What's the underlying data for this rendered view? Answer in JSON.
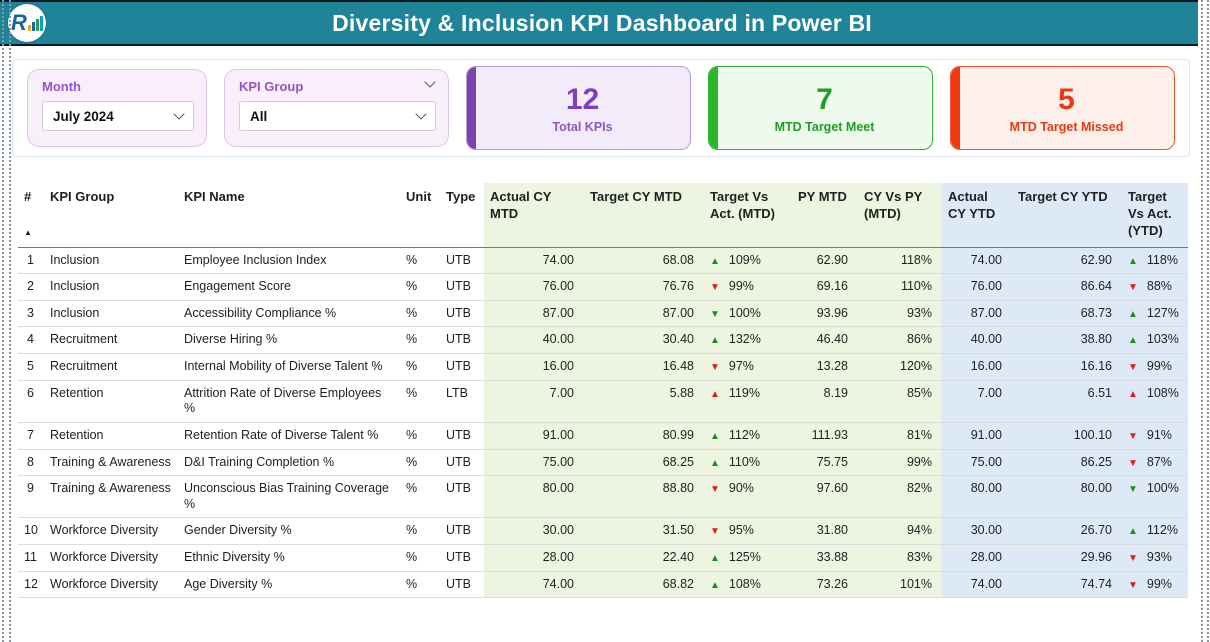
{
  "header": {
    "title": "Diversity & Inclusion KPI Dashboard in Power BI",
    "logo_letter": "R"
  },
  "filters": {
    "month": {
      "label": "Month",
      "value": "July 2024"
    },
    "kpi_group": {
      "label": "KPI Group",
      "value": "All"
    }
  },
  "cards": [
    {
      "value": "12",
      "label": "Total KPIs",
      "accent": "#7c44ac"
    },
    {
      "value": "7",
      "label": "MTD Target Meet",
      "accent": "#2db52d"
    },
    {
      "value": "5",
      "label": "MTD Target Missed",
      "accent": "#f0390e"
    }
  ],
  "table": {
    "sort_indicator": "▲",
    "columns": [
      {
        "label": "#"
      },
      {
        "label": "KPI Group"
      },
      {
        "label": "KPI Name"
      },
      {
        "label": "Unit"
      },
      {
        "label": "Type"
      },
      {
        "label": "Actual CY MTD",
        "group": "mtd"
      },
      {
        "label": "Target CY MTD",
        "group": "mtd"
      },
      {
        "label": "Target Vs Act. (MTD)",
        "group": "mtd"
      },
      {
        "label": "PY MTD",
        "group": "mtd"
      },
      {
        "label": "CY Vs PY (MTD)",
        "group": "mtd"
      },
      {
        "label": "Actual CY YTD",
        "group": "ytd"
      },
      {
        "label": "Target CY YTD",
        "group": "ytd"
      },
      {
        "label": "Target Vs Act. (YTD)",
        "group": "ytd"
      }
    ],
    "rows": [
      {
        "n": "1",
        "group": "Inclusion",
        "name": "Employee Inclusion Index",
        "unit": "%",
        "type": "UTB",
        "actual_mtd": "74.00",
        "target_mtd": "68.08",
        "tva_mtd": {
          "dir": "up",
          "tone": "good",
          "value": "109%"
        },
        "py_mtd": "62.90",
        "cy_py_mtd": "118%",
        "actual_ytd": "74.00",
        "target_ytd": "62.90",
        "tva_ytd": {
          "dir": "up",
          "tone": "good",
          "value": "118%"
        }
      },
      {
        "n": "2",
        "group": "Inclusion",
        "name": "Engagement Score",
        "unit": "%",
        "type": "UTB",
        "actual_mtd": "76.00",
        "target_mtd": "76.76",
        "tva_mtd": {
          "dir": "down",
          "tone": "bad",
          "value": "99%"
        },
        "py_mtd": "69.16",
        "cy_py_mtd": "110%",
        "actual_ytd": "76.00",
        "target_ytd": "86.64",
        "tva_ytd": {
          "dir": "down",
          "tone": "bad",
          "value": "88%"
        }
      },
      {
        "n": "3",
        "group": "Inclusion",
        "name": "Accessibility Compliance %",
        "unit": "%",
        "type": "UTB",
        "actual_mtd": "87.00",
        "target_mtd": "87.00",
        "tva_mtd": {
          "dir": "down",
          "tone": "good",
          "value": "100%"
        },
        "py_mtd": "93.96",
        "cy_py_mtd": "93%",
        "actual_ytd": "87.00",
        "target_ytd": "68.73",
        "tva_ytd": {
          "dir": "up",
          "tone": "good",
          "value": "127%"
        }
      },
      {
        "n": "4",
        "group": "Recruitment",
        "name": "Diverse Hiring %",
        "unit": "%",
        "type": "UTB",
        "actual_mtd": "40.00",
        "target_mtd": "30.40",
        "tva_mtd": {
          "dir": "up",
          "tone": "good",
          "value": "132%"
        },
        "py_mtd": "46.40",
        "cy_py_mtd": "86%",
        "actual_ytd": "40.00",
        "target_ytd": "38.80",
        "tva_ytd": {
          "dir": "up",
          "tone": "good",
          "value": "103%"
        }
      },
      {
        "n": "5",
        "group": "Recruitment",
        "name": "Internal Mobility of Diverse Talent %",
        "unit": "%",
        "type": "UTB",
        "actual_mtd": "16.00",
        "target_mtd": "16.48",
        "tva_mtd": {
          "dir": "down",
          "tone": "bad",
          "value": "97%"
        },
        "py_mtd": "13.28",
        "cy_py_mtd": "120%",
        "actual_ytd": "16.00",
        "target_ytd": "16.16",
        "tva_ytd": {
          "dir": "down",
          "tone": "bad",
          "value": "99%"
        }
      },
      {
        "n": "6",
        "group": "Retention",
        "name": "Attrition Rate of Diverse Employees %",
        "unit": "%",
        "type": "LTB",
        "actual_mtd": "7.00",
        "target_mtd": "5.88",
        "tva_mtd": {
          "dir": "up",
          "tone": "bad",
          "value": "119%"
        },
        "py_mtd": "8.19",
        "cy_py_mtd": "85%",
        "actual_ytd": "7.00",
        "target_ytd": "6.51",
        "tva_ytd": {
          "dir": "up",
          "tone": "bad",
          "value": "108%"
        }
      },
      {
        "n": "7",
        "group": "Retention",
        "name": "Retention Rate of Diverse Talent %",
        "unit": "%",
        "type": "UTB",
        "actual_mtd": "91.00",
        "target_mtd": "80.99",
        "tva_mtd": {
          "dir": "up",
          "tone": "good",
          "value": "112%"
        },
        "py_mtd": "111.93",
        "cy_py_mtd": "81%",
        "actual_ytd": "91.00",
        "target_ytd": "100.10",
        "tva_ytd": {
          "dir": "down",
          "tone": "bad",
          "value": "91%"
        }
      },
      {
        "n": "8",
        "group": "Training & Awareness",
        "name": "D&I Training Completion %",
        "unit": "%",
        "type": "UTB",
        "actual_mtd": "75.00",
        "target_mtd": "68.25",
        "tva_mtd": {
          "dir": "up",
          "tone": "good",
          "value": "110%"
        },
        "py_mtd": "75.75",
        "cy_py_mtd": "99%",
        "actual_ytd": "75.00",
        "target_ytd": "86.25",
        "tva_ytd": {
          "dir": "down",
          "tone": "bad",
          "value": "87%"
        }
      },
      {
        "n": "9",
        "group": "Training & Awareness",
        "name": "Unconscious Bias Training Coverage %",
        "unit": "%",
        "type": "UTB",
        "actual_mtd": "80.00",
        "target_mtd": "88.80",
        "tva_mtd": {
          "dir": "down",
          "tone": "bad",
          "value": "90%"
        },
        "py_mtd": "97.60",
        "cy_py_mtd": "82%",
        "actual_ytd": "80.00",
        "target_ytd": "80.00",
        "tva_ytd": {
          "dir": "down",
          "tone": "good",
          "value": "100%"
        }
      },
      {
        "n": "10",
        "group": "Workforce Diversity",
        "name": "Gender Diversity %",
        "unit": "%",
        "type": "UTB",
        "actual_mtd": "30.00",
        "target_mtd": "31.50",
        "tva_mtd": {
          "dir": "down",
          "tone": "bad",
          "value": "95%"
        },
        "py_mtd": "31.80",
        "cy_py_mtd": "94%",
        "actual_ytd": "30.00",
        "target_ytd": "26.70",
        "tva_ytd": {
          "dir": "up",
          "tone": "good",
          "value": "112%"
        }
      },
      {
        "n": "11",
        "group": "Workforce Diversity",
        "name": "Ethnic Diversity %",
        "unit": "%",
        "type": "UTB",
        "actual_mtd": "28.00",
        "target_mtd": "22.40",
        "tva_mtd": {
          "dir": "up",
          "tone": "good",
          "value": "125%"
        },
        "py_mtd": "33.88",
        "cy_py_mtd": "83%",
        "actual_ytd": "28.00",
        "target_ytd": "29.96",
        "tva_ytd": {
          "dir": "down",
          "tone": "bad",
          "value": "93%"
        }
      },
      {
        "n": "12",
        "group": "Workforce Diversity",
        "name": "Age Diversity %",
        "unit": "%",
        "type": "UTB",
        "actual_mtd": "74.00",
        "target_mtd": "68.82",
        "tva_mtd": {
          "dir": "up",
          "tone": "good",
          "value": "108%"
        },
        "py_mtd": "73.26",
        "cy_py_mtd": "101%",
        "actual_ytd": "74.00",
        "target_ytd": "74.74",
        "tva_ytd": {
          "dir": "down",
          "tone": "bad",
          "value": "99%"
        }
      }
    ]
  },
  "colors": {
    "banner_teal": "#1F8399",
    "purple_accent": "#7c44ac",
    "green_accent": "#2db52d",
    "red_accent": "#f0390e",
    "mtd_column_bg": "#edf5e1",
    "ytd_column_bg": "#dee9f7",
    "arrow_good": "#1b8f1b",
    "arrow_bad": "#e01b1b"
  }
}
